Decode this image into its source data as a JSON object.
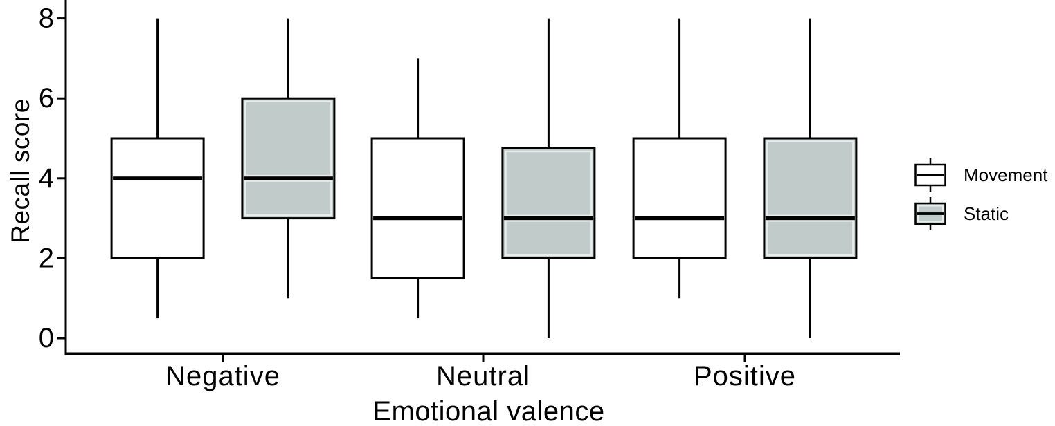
{
  "figure": {
    "background": "#ffffff"
  },
  "chart_data": {
    "type": "boxplot",
    "orientation": "vertical",
    "title": "",
    "xlabel": "Emotional valence",
    "ylabel": "Recall score",
    "categories": [
      "Negative",
      "Neutral",
      "Positive"
    ],
    "yticks": [
      0,
      2,
      4,
      6,
      8
    ],
    "ylim": [
      0,
      8
    ],
    "grid": false,
    "legend": {
      "position": "right",
      "items": [
        {
          "label": "Movement",
          "fill": "#ffffff"
        },
        {
          "label": "Static",
          "fill": "#c1cbca"
        }
      ]
    },
    "series": [
      {
        "name": "Movement",
        "fill": "#ffffff",
        "boxes": [
          {
            "category": "Negative",
            "whisker_low": 0.5,
            "q1": 2,
            "median": 4,
            "q3": 5,
            "whisker_high": 8
          },
          {
            "category": "Neutral",
            "whisker_low": 0.5,
            "q1": 1.5,
            "median": 3,
            "q3": 5,
            "whisker_high": 7
          },
          {
            "category": "Positive",
            "whisker_low": 1,
            "q1": 2,
            "median": 3,
            "q3": 5,
            "whisker_high": 8
          }
        ]
      },
      {
        "name": "Static",
        "fill": "#c1cbca",
        "boxes": [
          {
            "category": "Negative",
            "whisker_low": 1,
            "q1": 3,
            "median": 4,
            "q3": 6,
            "whisker_high": 8
          },
          {
            "category": "Neutral",
            "whisker_low": 0,
            "q1": 2,
            "median": 3,
            "q3": 4.75,
            "whisker_high": 8
          },
          {
            "category": "Positive",
            "whisker_low": 0,
            "q1": 2,
            "median": 3,
            "q3": 5,
            "whisker_high": 8
          }
        ]
      }
    ],
    "colors": {
      "line": "#000000",
      "movement_fill": "#ffffff",
      "static_fill": "#c1cbca",
      "inset_highlight": "#e8edeb"
    }
  }
}
